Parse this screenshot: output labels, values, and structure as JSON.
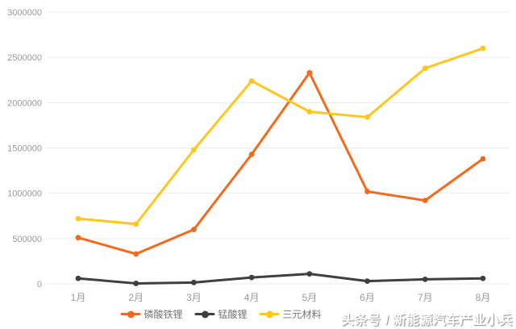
{
  "chart_data": {
    "type": "line",
    "categories": [
      "1月",
      "2月",
      "3月",
      "4月",
      "5月",
      "6月",
      "7月",
      "8月"
    ],
    "series": [
      {
        "key": "lfp",
        "name": "磷酸铁锂",
        "color": "#F5691D",
        "values": [
          510000,
          330000,
          600000,
          1430000,
          2330000,
          1020000,
          920000,
          1380000
        ]
      },
      {
        "key": "lmo",
        "name": "锰酸锂",
        "color": "#3F3F3F",
        "values": [
          60000,
          5000,
          15000,
          70000,
          110000,
          30000,
          50000,
          60000
        ]
      },
      {
        "key": "ternary",
        "name": "三元材料",
        "color": "#FFC61E",
        "values": [
          720000,
          660000,
          1480000,
          2240000,
          1900000,
          1840000,
          2380000,
          2600000
        ]
      }
    ],
    "title": "",
    "xlabel": "",
    "ylabel": "",
    "ylim": [
      0,
      3000000
    ],
    "yticks": [
      0,
      500000,
      1000000,
      1500000,
      2000000,
      2500000,
      3000000
    ],
    "grid": true,
    "legend_position": "bottom",
    "grid_color": "#ececec",
    "axis_text_color": "#999999"
  },
  "watermark": {
    "text": "头条号 / 新能源汽车产业小兵"
  }
}
